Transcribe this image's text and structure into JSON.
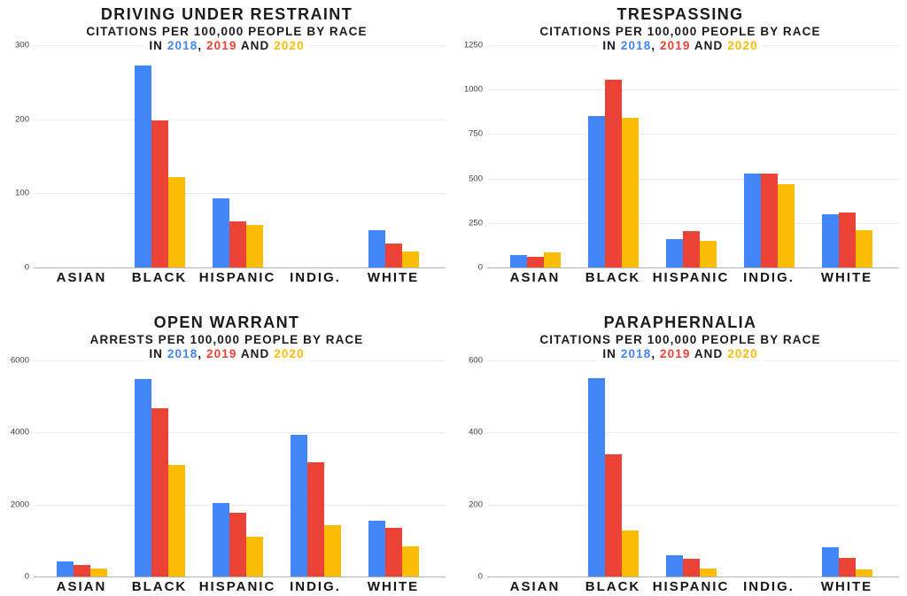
{
  "colors": {
    "year2018": "#4285F4",
    "year2019": "#EA4335",
    "year2020": "#FBBC05",
    "grid": "#ededed",
    "axis": "#b3b3b3",
    "title_text": "#1b1b1b"
  },
  "legend": {
    "in_word": "IN",
    "y2018": "2018",
    "comma": ",",
    "y2019": "2019",
    "and_word": "AND",
    "y2020": "2020"
  },
  "chart_data": [
    {
      "type": "bar",
      "title": "DRIVING UNDER RESTRAINT",
      "subtitle": "CITATIONS PER 100,000 PEOPLE BY RACE",
      "legend_line": "IN 2018, 2019 AND 2020",
      "categories": [
        "ASIAN",
        "BLACK",
        "HISPANIC",
        "INDIG.",
        "WHITE"
      ],
      "series": [
        {
          "name": "2018",
          "values": [
            0,
            272,
            93,
            0,
            50
          ]
        },
        {
          "name": "2019",
          "values": [
            0,
            199,
            62,
            0,
            32
          ]
        },
        {
          "name": "2020",
          "values": [
            0,
            122,
            57,
            0,
            22
          ]
        }
      ],
      "xlabel": "",
      "ylabel": "",
      "ylim": [
        0,
        300
      ],
      "yticks": [
        0,
        100,
        200,
        300
      ],
      "grid": true,
      "legend_position": "in-title"
    },
    {
      "type": "bar",
      "title": "TRESPASSING",
      "subtitle": "CITATIONS PER 100,000 PEOPLE BY RACE",
      "legend_line": "IN 2018, 2019 AND 2020",
      "categories": [
        "ASIAN",
        "BLACK",
        "HISPANIC",
        "INDIG.",
        "WHITE"
      ],
      "series": [
        {
          "name": "2018",
          "values": [
            70,
            850,
            160,
            530,
            300
          ]
        },
        {
          "name": "2019",
          "values": [
            60,
            1055,
            205,
            530,
            310
          ]
        },
        {
          "name": "2020",
          "values": [
            85,
            840,
            150,
            470,
            210
          ]
        }
      ],
      "xlabel": "",
      "ylabel": "",
      "ylim": [
        0,
        1250
      ],
      "yticks": [
        0,
        250,
        500,
        750,
        1000,
        1250
      ],
      "grid": true,
      "legend_position": "in-title"
    },
    {
      "type": "bar",
      "title": "OPEN WARRANT",
      "subtitle": "ARRESTS PER 100,000 PEOPLE BY RACE",
      "legend_line": "IN 2018, 2019 AND 2020",
      "categories": [
        "ASIAN",
        "BLACK",
        "HISPANIC",
        "INDIG.",
        "WHITE"
      ],
      "series": [
        {
          "name": "2018",
          "values": [
            420,
            5480,
            2030,
            3930,
            1550
          ]
        },
        {
          "name": "2019",
          "values": [
            320,
            4670,
            1760,
            3170,
            1360
          ]
        },
        {
          "name": "2020",
          "values": [
            210,
            3100,
            1110,
            1430,
            830
          ]
        }
      ],
      "xlabel": "",
      "ylabel": "",
      "ylim": [
        0,
        6000
      ],
      "yticks": [
        0,
        2000,
        4000,
        6000
      ],
      "grid": true,
      "legend_position": "in-title"
    },
    {
      "type": "bar",
      "title": "PARAPHERNALIA",
      "subtitle": "CITATIONS PER 100,000 PEOPLE BY RACE",
      "legend_line": "IN 2018, 2019 AND 2020",
      "categories": [
        "ASIAN",
        "BLACK",
        "HISPANIC",
        "INDIG.",
        "WHITE"
      ],
      "series": [
        {
          "name": "2018",
          "values": [
            0,
            550,
            60,
            0,
            80
          ]
        },
        {
          "name": "2019",
          "values": [
            0,
            340,
            48,
            0,
            51
          ]
        },
        {
          "name": "2020",
          "values": [
            0,
            128,
            22,
            0,
            20
          ]
        }
      ],
      "xlabel": "",
      "ylabel": "",
      "ylim": [
        0,
        600
      ],
      "yticks": [
        0,
        200,
        400,
        600
      ],
      "grid": true,
      "legend_position": "in-title"
    }
  ]
}
